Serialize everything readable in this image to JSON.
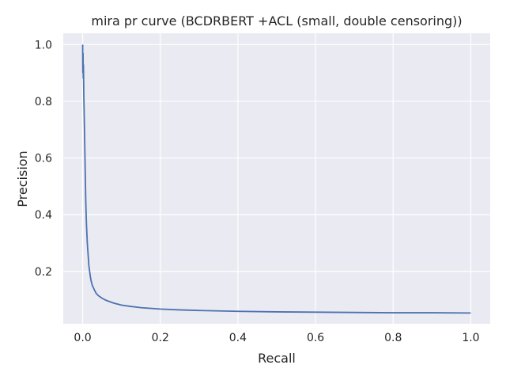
{
  "chart_data": {
    "type": "line",
    "title": "mira pr curve (BCDRBERT +ACL (small, double censoring))",
    "xlabel": "Recall",
    "ylabel": "Precision",
    "xlim": [
      -0.05,
      1.05
    ],
    "ylim": [
      0.015,
      1.04
    ],
    "xticks": [
      0.0,
      0.2,
      0.4,
      0.6,
      0.8,
      1.0
    ],
    "xtick_labels": [
      "0.0",
      "0.2",
      "0.4",
      "0.6",
      "0.8",
      "1.0"
    ],
    "yticks": [
      0.2,
      0.4,
      0.6,
      0.8,
      1.0
    ],
    "ytick_labels": [
      "0.2",
      "0.4",
      "0.6",
      "0.8",
      "1.0"
    ],
    "grid": true,
    "colors": {
      "background": "#eaeaf2",
      "grid": "#ffffff",
      "line": "#4c72b0"
    },
    "series": [
      {
        "x": [
          0.0,
          0.0005,
          0.001,
          0.0015,
          0.002,
          0.003,
          0.004,
          0.005,
          0.006,
          0.007,
          0.008,
          0.009,
          0.01,
          0.012,
          0.014,
          0.016,
          0.018,
          0.02,
          0.022,
          0.025,
          0.03,
          0.035,
          0.04,
          0.05,
          0.06,
          0.08,
          0.1,
          0.12,
          0.15,
          0.2,
          0.25,
          0.3,
          0.4,
          0.5,
          0.6,
          0.7,
          0.8,
          0.9,
          1.0
        ],
        "y": [
          1.0,
          0.9,
          0.97,
          0.88,
          0.93,
          0.82,
          0.75,
          0.68,
          0.6,
          0.52,
          0.45,
          0.4,
          0.36,
          0.3,
          0.26,
          0.22,
          0.2,
          0.18,
          0.165,
          0.15,
          0.135,
          0.122,
          0.115,
          0.105,
          0.098,
          0.088,
          0.081,
          0.077,
          0.072,
          0.067,
          0.064,
          0.062,
          0.059,
          0.057,
          0.056,
          0.055,
          0.054,
          0.054,
          0.053
        ]
      }
    ]
  }
}
